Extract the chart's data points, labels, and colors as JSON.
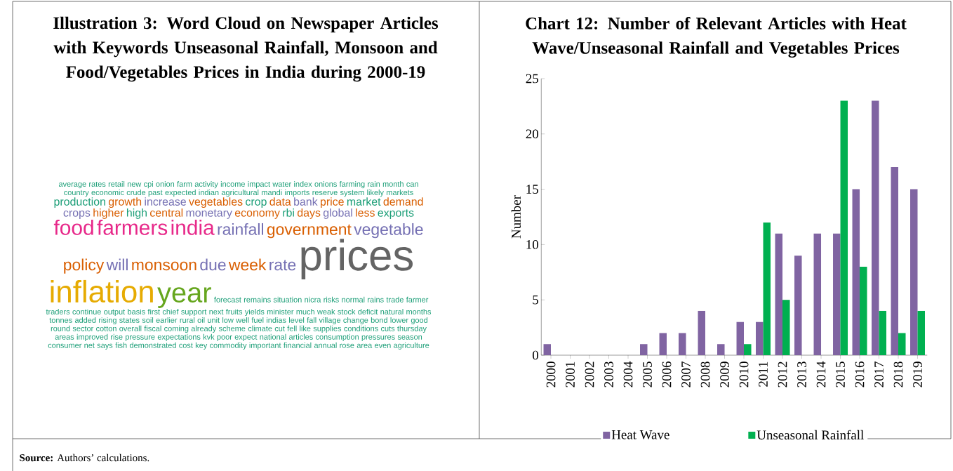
{
  "chart_data": [
    {
      "type": "other",
      "title": "Illustration 3: Word Cloud on Newspaper Articles with Keywords Unseasonal Rainfall, Monsoon and Food/Vegetables Prices in India during 2000-19",
      "annotations": [
        "prices",
        "inflation",
        "year",
        "food",
        "farmers",
        "india",
        "rainfall",
        "government",
        "vegetable",
        "policy",
        "will",
        "monsoon",
        "due",
        "week",
        "rate",
        "production",
        "growth",
        "increase",
        "vegetables",
        "crop",
        "data",
        "bank",
        "price",
        "market",
        "demand",
        "crops",
        "higher",
        "high",
        "central",
        "monetary",
        "economy",
        "rbi",
        "days",
        "global",
        "less",
        "exports",
        "average",
        "rates",
        "retail",
        "new",
        "cpi",
        "onion",
        "farm",
        "activity",
        "income",
        "impact",
        "water",
        "index",
        "onions",
        "farming",
        "rain",
        "month",
        "can",
        "country",
        "economic",
        "crude",
        "past",
        "expected",
        "indian",
        "agricultural",
        "mandi",
        "imports",
        "reserve",
        "system",
        "likely",
        "markets",
        "forecast",
        "remains",
        "situation",
        "nicra",
        "risks",
        "normal",
        "rains",
        "trade",
        "farmer",
        "traders",
        "continue",
        "output",
        "basis",
        "first",
        "chief",
        "support",
        "next",
        "fruits",
        "yields",
        "minister",
        "much",
        "weak",
        "stock",
        "deficit",
        "natural",
        "months",
        "tonnes",
        "added",
        "rising",
        "states",
        "soil",
        "earlier",
        "rural",
        "oil",
        "unit",
        "low",
        "well",
        "fuel",
        "indias",
        "level",
        "fall",
        "village",
        "change",
        "bond",
        "lower",
        "good",
        "round",
        "sector",
        "cotton",
        "overall",
        "fiscal",
        "coming",
        "already",
        "scheme",
        "climate",
        "cut",
        "fell",
        "like",
        "supplies",
        "conditions",
        "cuts",
        "thursday",
        "areas",
        "improved",
        "rise",
        "pressure",
        "expectations",
        "kvk",
        "poor",
        "expect",
        "national",
        "articles",
        "consumption",
        "pressures",
        "season",
        "consumer",
        "net",
        "says",
        "fish",
        "demonstrated",
        "cost",
        "key",
        "commodity",
        "important",
        "financial",
        "annual",
        "rose",
        "area",
        "even",
        "agriculture",
        "**Source:** Authors’ calculations."
      ]
    },
    {
      "type": "bar",
      "title": "Chart 12: Number of Relevant Articles with Heat Wave/Unseasonal Rainfall and Vegetables Prices",
      "ylabel": "Number",
      "categories": [
        "2000",
        "2001",
        "2002",
        "2003",
        "2004",
        "2005",
        "2006",
        "2007",
        "2008",
        "2009",
        "2010",
        "2011",
        "2012",
        "2013",
        "2014",
        "2015",
        "2016",
        "2017",
        "2018",
        "2019"
      ],
      "series": [
        {
          "name": "Heat Wave",
          "color": "#8064a2",
          "values": [
            1,
            0,
            0,
            0,
            0,
            1,
            2,
            2,
            4,
            1,
            3,
            3,
            11,
            9,
            11,
            11,
            15,
            23,
            17,
            15
          ]
        },
        {
          "name": "Unseasonal Rainfall",
          "color": "#00b050",
          "values": [
            0,
            0,
            0,
            0,
            0,
            0,
            0,
            0,
            0,
            0,
            1,
            12,
            5,
            0,
            0,
            23,
            8,
            4,
            2,
            4
          ]
        }
      ],
      "ylim": [
        0,
        25
      ],
      "yticks": [
        0,
        5,
        10,
        15,
        20,
        25
      ],
      "grid": false,
      "legend": "bottom"
    }
  ]
}
